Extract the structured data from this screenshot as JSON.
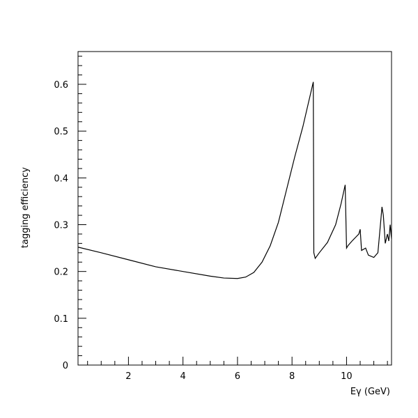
{
  "chart_data": {
    "type": "line",
    "title": "",
    "xlabel": "Eγ (GeV)",
    "ylabel": "tagging efficiency",
    "xlim": [
      0.15,
      11.65
    ],
    "ylim": [
      0,
      0.67
    ],
    "x_ticks": [
      2,
      4,
      6,
      8,
      10
    ],
    "y_ticks": [
      0,
      0.1,
      0.2,
      0.3,
      0.4,
      0.5,
      0.6
    ],
    "x_tick_labels": [
      "2",
      "4",
      "6",
      "8",
      "10"
    ],
    "y_tick_labels": [
      "0",
      "0.1",
      "0.2",
      "0.3",
      "0.4",
      "0.5",
      "0.6"
    ],
    "grid": false,
    "legend": "none",
    "line_color": "#000000",
    "series": [
      {
        "x": [
          0.15,
          1.0,
          2.0,
          3.0,
          4.0,
          5.0,
          5.5,
          6.0,
          6.3,
          6.6,
          6.9,
          7.2,
          7.5,
          7.8,
          8.1,
          8.4,
          8.6,
          8.72,
          8.78,
          8.8,
          8.85,
          9.0,
          9.3,
          9.6,
          9.8,
          9.95,
          10.0,
          10.05,
          10.2,
          10.45,
          10.5,
          10.55,
          10.7,
          10.8,
          11.0,
          11.15,
          11.25,
          11.3,
          11.35,
          11.42,
          11.5,
          11.55,
          11.6,
          11.65
        ],
        "y": [
          0.252,
          0.24,
          0.225,
          0.21,
          0.2,
          0.19,
          0.186,
          0.185,
          0.188,
          0.198,
          0.22,
          0.255,
          0.305,
          0.375,
          0.445,
          0.51,
          0.56,
          0.59,
          0.605,
          0.24,
          0.228,
          0.24,
          0.262,
          0.3,
          0.345,
          0.385,
          0.25,
          0.255,
          0.265,
          0.28,
          0.29,
          0.245,
          0.25,
          0.235,
          0.23,
          0.24,
          0.305,
          0.338,
          0.32,
          0.26,
          0.28,
          0.265,
          0.3,
          0.27
        ]
      }
    ]
  }
}
